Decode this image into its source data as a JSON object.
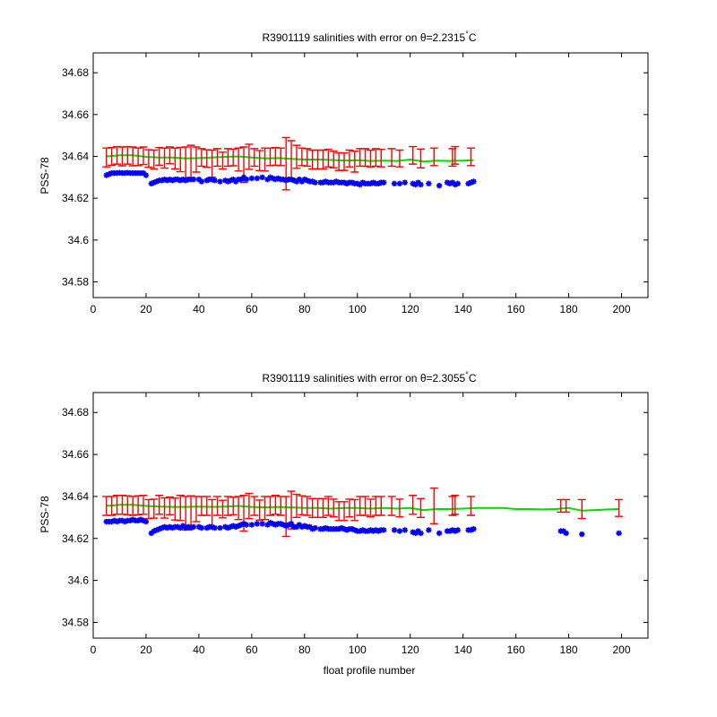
{
  "figure": {
    "background": "#ffffff",
    "colors": {
      "float": "#0000ff",
      "mapped": "#00dd00",
      "error": "#ff0000"
    }
  },
  "chart_data": [
    {
      "type": "scatter",
      "title_main": "R3901119 salinities with error on θ=2.2315",
      "title_deg": "°",
      "title_unit": "C",
      "xlabel": "",
      "ylabel": "PSS-78",
      "xlim": [
        0,
        210
      ],
      "ylim": [
        34.5725,
        34.6895
      ],
      "xticks": [
        "0",
        "20",
        "40",
        "60",
        "80",
        "100",
        "120",
        "140",
        "160",
        "180",
        "200"
      ],
      "yticks": [
        "34.58",
        "34.6",
        "34.62",
        "34.64",
        "34.66",
        "34.68"
      ],
      "grid": false,
      "float_salinity": {
        "x": [
          5,
          6,
          7,
          8,
          9,
          10,
          11,
          12,
          13,
          14,
          15,
          16,
          17,
          18,
          19,
          20,
          22,
          23,
          24,
          25,
          26,
          27,
          28,
          29,
          30,
          31,
          32,
          33,
          34,
          35,
          36,
          37,
          38,
          40,
          41,
          43,
          44,
          45,
          46,
          48,
          50,
          51,
          52,
          53,
          54,
          55,
          56,
          57,
          58,
          60,
          62,
          64,
          66,
          67,
          68,
          69,
          70,
          71,
          72,
          73,
          74,
          75,
          76,
          77,
          78,
          79,
          80,
          81,
          82,
          83,
          84,
          86,
          87,
          88,
          89,
          90,
          91,
          92,
          93,
          94,
          95,
          96,
          97,
          98,
          99,
          100,
          101,
          102,
          103,
          104,
          105,
          106,
          107,
          108,
          109,
          110,
          114,
          116,
          118,
          121,
          122,
          123,
          124,
          127,
          131,
          134,
          135,
          136,
          137,
          138,
          142,
          143,
          144
        ],
        "y": [
          34.631,
          34.6315,
          34.632,
          34.632,
          34.632,
          34.6322,
          34.632,
          34.632,
          34.6322,
          34.632,
          34.632,
          34.632,
          34.632,
          34.632,
          34.632,
          34.631,
          34.627,
          34.6275,
          34.628,
          34.6285,
          34.6285,
          34.629,
          34.6285,
          34.629,
          34.6285,
          34.629,
          34.629,
          34.6285,
          34.629,
          34.6285,
          34.629,
          34.629,
          34.629,
          34.629,
          34.628,
          34.6285,
          34.629,
          34.629,
          34.6285,
          34.628,
          34.6285,
          34.628,
          34.6285,
          34.629,
          34.628,
          34.629,
          34.629,
          34.63,
          34.629,
          34.6295,
          34.6295,
          34.63,
          34.629,
          34.63,
          34.6295,
          34.629,
          34.6295,
          34.629,
          34.629,
          34.6285,
          34.629,
          34.629,
          34.6285,
          34.628,
          34.629,
          34.628,
          34.629,
          34.6285,
          34.628,
          34.628,
          34.6275,
          34.6275,
          34.6275,
          34.628,
          34.6275,
          34.6275,
          34.6275,
          34.628,
          34.6275,
          34.6275,
          34.6275,
          34.627,
          34.6275,
          34.6275,
          34.627,
          34.627,
          34.6265,
          34.6275,
          34.627,
          34.627,
          34.627,
          34.6275,
          34.627,
          34.627,
          34.6275,
          34.6275,
          34.627,
          34.627,
          34.6275,
          34.627,
          34.6265,
          34.6275,
          34.6265,
          34.627,
          34.626,
          34.6275,
          34.627,
          34.6275,
          34.6265,
          34.627,
          34.627,
          34.6275,
          34.628
        ]
      },
      "mapped_salinity": {
        "x": [
          5,
          10,
          15,
          20,
          25,
          30,
          35,
          40,
          45,
          50,
          55,
          60,
          65,
          70,
          75,
          80,
          85,
          90,
          95,
          100,
          105,
          110,
          115,
          120,
          125,
          130,
          135,
          140,
          144
        ],
        "y": [
          34.64,
          34.6405,
          34.6405,
          34.6398,
          34.6395,
          34.6395,
          34.639,
          34.6392,
          34.6395,
          34.6398,
          34.64,
          34.6395,
          34.639,
          34.6392,
          34.6388,
          34.6385,
          34.6385,
          34.6383,
          34.638,
          34.6382,
          34.6378,
          34.638,
          34.6378,
          34.6385,
          34.6375,
          34.638,
          34.6378,
          34.638,
          34.6382
        ]
      },
      "error_bars": {
        "x": [
          5,
          7,
          9,
          11,
          13,
          15,
          17,
          19,
          21,
          23,
          25,
          27,
          29,
          31,
          33,
          35,
          37,
          39,
          41,
          43,
          45,
          47,
          49,
          51,
          53,
          55,
          57,
          59,
          61,
          63,
          65,
          67,
          69,
          71,
          73,
          75,
          77,
          79,
          81,
          83,
          85,
          87,
          89,
          91,
          93,
          95,
          97,
          99,
          101,
          103,
          105,
          107,
          109,
          113,
          116,
          121,
          124,
          129,
          136,
          137,
          143
        ],
        "center": [
          34.6395,
          34.64,
          34.6405,
          34.64,
          34.6405,
          34.64,
          34.6398,
          34.6403,
          34.639,
          34.6385,
          34.64,
          34.6392,
          34.6405,
          34.639,
          34.6385,
          34.6365,
          34.6375,
          34.6385,
          34.6395,
          34.639,
          34.6365,
          34.6395,
          34.638,
          34.6395,
          34.6395,
          34.6385,
          34.636,
          34.6398,
          34.6395,
          34.638,
          34.6385,
          34.6398,
          34.64,
          34.6398,
          34.6365,
          34.6385,
          34.6398,
          34.6398,
          34.6395,
          34.6385,
          34.6385,
          34.6385,
          34.6392,
          34.6385,
          34.6375,
          34.6375,
          34.639,
          34.6375,
          34.6395,
          34.6395,
          34.639,
          34.6395,
          34.6392,
          34.6395,
          34.639,
          34.6405,
          34.639,
          34.6398,
          34.6395,
          34.6405,
          34.6398
        ],
        "half": [
          0.0045,
          0.0042,
          0.0042,
          0.0045,
          0.0042,
          0.0045,
          0.0042,
          0.0042,
          0.0042,
          0.0045,
          0.0042,
          0.0048,
          0.004,
          0.005,
          0.0058,
          0.008,
          0.0078,
          0.006,
          0.0042,
          0.0042,
          0.0065,
          0.0042,
          0.004,
          0.0042,
          0.004,
          0.0055,
          0.0085,
          0.006,
          0.0042,
          0.0048,
          0.0055,
          0.0042,
          0.0042,
          0.0042,
          0.0125,
          0.009,
          0.0055,
          0.0042,
          0.0042,
          0.0045,
          0.0045,
          0.0045,
          0.0042,
          0.004,
          0.0042,
          0.0042,
          0.004,
          0.005,
          0.0042,
          0.0042,
          0.004,
          0.0042,
          0.0042,
          0.0042,
          0.004,
          0.0042,
          0.0045,
          0.0042,
          0.0042,
          0.0042,
          0.0042
        ]
      }
    },
    {
      "type": "scatter",
      "title_main": "R3901119 salinities with error on θ=2.3055",
      "title_deg": "°",
      "title_unit": "C",
      "xlabel": "float profile number",
      "ylabel": "PSS-78",
      "xlim": [
        0,
        210
      ],
      "ylim": [
        34.5725,
        34.6895
      ],
      "xticks": [
        "0",
        "20",
        "40",
        "60",
        "80",
        "100",
        "120",
        "140",
        "160",
        "180",
        "200"
      ],
      "yticks": [
        "34.58",
        "34.6",
        "34.62",
        "34.64",
        "34.66",
        "34.68"
      ],
      "grid": false,
      "float_salinity": {
        "x": [
          5,
          6,
          7,
          8,
          9,
          10,
          11,
          12,
          13,
          14,
          15,
          16,
          17,
          18,
          19,
          20,
          22,
          23,
          24,
          25,
          26,
          27,
          28,
          29,
          30,
          31,
          32,
          33,
          34,
          35,
          36,
          37,
          38,
          40,
          41,
          43,
          44,
          45,
          46,
          48,
          50,
          51,
          52,
          53,
          54,
          55,
          56,
          57,
          58,
          60,
          62,
          64,
          66,
          67,
          68,
          69,
          70,
          71,
          72,
          73,
          74,
          75,
          76,
          77,
          78,
          79,
          80,
          81,
          82,
          83,
          84,
          86,
          87,
          88,
          89,
          90,
          91,
          92,
          93,
          94,
          95,
          96,
          97,
          98,
          99,
          100,
          101,
          102,
          103,
          104,
          105,
          106,
          107,
          108,
          109,
          110,
          114,
          116,
          118,
          121,
          122,
          123,
          124,
          127,
          131,
          134,
          135,
          136,
          137,
          138,
          142,
          143,
          144,
          177,
          178,
          179,
          185,
          199
        ],
        "y": [
          34.628,
          34.628,
          34.628,
          34.6285,
          34.628,
          34.6285,
          34.6285,
          34.628,
          34.6285,
          34.6285,
          34.629,
          34.6285,
          34.6285,
          34.629,
          34.6285,
          34.628,
          34.6225,
          34.6235,
          34.624,
          34.6245,
          34.625,
          34.6255,
          34.625,
          34.6255,
          34.625,
          34.6255,
          34.6255,
          34.625,
          34.626,
          34.625,
          34.6255,
          34.625,
          34.6255,
          34.6255,
          34.625,
          34.625,
          34.6255,
          34.6255,
          34.625,
          34.625,
          34.6255,
          34.625,
          34.6255,
          34.626,
          34.6255,
          34.626,
          34.6265,
          34.627,
          34.6265,
          34.6265,
          34.627,
          34.627,
          34.6265,
          34.6275,
          34.627,
          34.6265,
          34.627,
          34.627,
          34.6265,
          34.626,
          34.6265,
          34.627,
          34.6255,
          34.6255,
          34.6265,
          34.6255,
          34.626,
          34.6255,
          34.6255,
          34.6245,
          34.625,
          34.6245,
          34.6245,
          34.625,
          34.6245,
          34.6245,
          34.6245,
          34.6245,
          34.6245,
          34.625,
          34.6245,
          34.624,
          34.6245,
          34.6245,
          34.624,
          34.6235,
          34.6235,
          34.624,
          34.6235,
          34.6235,
          34.624,
          34.6235,
          34.624,
          34.6235,
          34.624,
          34.624,
          34.624,
          34.6235,
          34.624,
          34.623,
          34.6225,
          34.6235,
          34.6225,
          34.624,
          34.6225,
          34.6235,
          34.6235,
          34.624,
          34.6235,
          34.624,
          34.624,
          34.624,
          34.6245,
          34.6235,
          34.6235,
          34.6225,
          34.622,
          34.6225
        ]
      },
      "mapped_salinity": {
        "x": [
          5,
          10,
          15,
          20,
          25,
          30,
          35,
          40,
          45,
          50,
          55,
          60,
          65,
          70,
          75,
          80,
          85,
          90,
          95,
          100,
          105,
          110,
          115,
          120,
          125,
          130,
          135,
          140,
          145,
          150,
          155,
          160,
          165,
          170,
          175,
          180,
          185,
          190,
          195,
          199
        ],
        "y": [
          34.6355,
          34.636,
          34.636,
          34.6355,
          34.6352,
          34.635,
          34.635,
          34.6352,
          34.635,
          34.6352,
          34.6355,
          34.635,
          34.6348,
          34.635,
          34.6348,
          34.6345,
          34.6345,
          34.6342,
          34.6345,
          34.6345,
          34.6342,
          34.6345,
          34.6342,
          34.6345,
          34.6335,
          34.634,
          34.634,
          34.6342,
          34.6345,
          34.6345,
          34.6345,
          34.634,
          34.634,
          34.6338,
          34.634,
          34.6345,
          34.6332,
          34.6335,
          34.6338,
          34.634
        ]
      },
      "error_bars": {
        "x": [
          5,
          7,
          9,
          11,
          13,
          15,
          17,
          19,
          21,
          23,
          25,
          27,
          29,
          31,
          33,
          35,
          37,
          39,
          41,
          43,
          45,
          47,
          49,
          51,
          53,
          55,
          57,
          59,
          61,
          63,
          65,
          67,
          69,
          71,
          73,
          75,
          77,
          79,
          81,
          83,
          85,
          87,
          89,
          91,
          93,
          95,
          97,
          99,
          101,
          103,
          105,
          107,
          109,
          113,
          116,
          121,
          124,
          129,
          136,
          137,
          143,
          177,
          179,
          185,
          199
        ],
        "center": [
          34.6355,
          34.6355,
          34.636,
          34.636,
          34.6358,
          34.6355,
          34.6358,
          34.636,
          34.634,
          34.6342,
          34.636,
          34.6345,
          34.6355,
          34.634,
          34.6345,
          34.632,
          34.6325,
          34.634,
          34.6355,
          34.6355,
          34.632,
          34.6355,
          34.634,
          34.6355,
          34.6355,
          34.6345,
          34.632,
          34.6355,
          34.6355,
          34.6335,
          34.6345,
          34.6355,
          34.636,
          34.6355,
          34.6305,
          34.6335,
          34.6355,
          34.6358,
          34.6355,
          34.6345,
          34.6345,
          34.6345,
          34.6355,
          34.6345,
          34.633,
          34.633,
          34.6345,
          34.6335,
          34.6355,
          34.6355,
          34.6345,
          34.6355,
          34.6355,
          34.6355,
          34.6345,
          34.636,
          34.6345,
          34.6355,
          34.6355,
          34.636,
          34.6355,
          34.6355,
          34.6355,
          34.634,
          34.6345
        ],
        "half": [
          0.0045,
          0.0045,
          0.0045,
          0.0045,
          0.0045,
          0.0045,
          0.0045,
          0.0045,
          0.0045,
          0.0045,
          0.0045,
          0.0048,
          0.0042,
          0.0052,
          0.006,
          0.008,
          0.0078,
          0.006,
          0.0045,
          0.0045,
          0.0065,
          0.0045,
          0.0042,
          0.0045,
          0.0042,
          0.0055,
          0.0085,
          0.006,
          0.0045,
          0.0048,
          0.0055,
          0.0045,
          0.0045,
          0.0045,
          0.0095,
          0.009,
          0.0055,
          0.0045,
          0.0045,
          0.0045,
          0.0045,
          0.0045,
          0.0045,
          0.0042,
          0.0045,
          0.0045,
          0.0042,
          0.005,
          0.0045,
          0.0045,
          0.0042,
          0.0045,
          0.0045,
          0.0045,
          0.0042,
          0.0045,
          0.0045,
          0.0085,
          0.0045,
          0.0045,
          0.0045,
          0.003,
          0.003,
          0.0045,
          0.004
        ]
      }
    }
  ]
}
